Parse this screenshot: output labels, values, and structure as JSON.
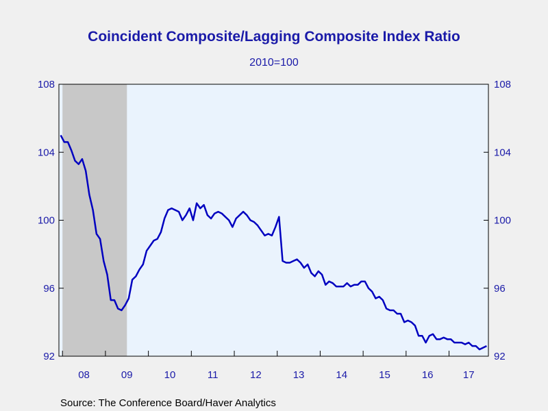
{
  "chart_data": {
    "type": "line",
    "title": "Coincident Composite/Lagging Composite Index Ratio",
    "subtitle": "2010=100",
    "source": "Source:  The Conference Board/Haver Analytics",
    "x_start": "2007-12",
    "x_tick_labels": [
      "08",
      "09",
      "10",
      "11",
      "12",
      "13",
      "14",
      "15",
      "16",
      "17"
    ],
    "ylim": [
      92,
      108
    ],
    "y_ticks": [
      92,
      96,
      100,
      104,
      108
    ],
    "y_tick_labels": [
      "92",
      "96",
      "100",
      "104",
      "108"
    ],
    "grid": false,
    "recession_shading": {
      "start": "2008-01",
      "end": "2009-06",
      "color": "#c8c8c8"
    },
    "colors": {
      "line": "#0000c0",
      "plot_bg": "#eaf3fd",
      "axis": "#000000",
      "text": "#1a1aa8"
    },
    "series": [
      {
        "values": [
          105.0,
          104.6,
          104.6,
          104.1,
          103.5,
          103.3,
          103.6,
          102.9,
          101.5,
          100.6,
          99.2,
          98.9,
          97.6,
          96.8,
          95.3,
          95.3,
          94.8,
          94.7,
          95.0,
          95.4,
          96.5,
          96.7,
          97.1,
          97.4,
          98.2,
          98.5,
          98.8,
          98.9,
          99.3,
          100.1,
          100.6,
          100.7,
          100.6,
          100.5,
          100.0,
          100.3,
          100.7,
          100.0,
          101.0,
          100.7,
          100.9,
          100.3,
          100.1,
          100.4,
          100.5,
          100.4,
          100.2,
          100.0,
          99.6,
          100.1,
          100.3,
          100.5,
          100.3,
          100.0,
          99.9,
          99.7,
          99.4,
          99.1,
          99.2,
          99.1,
          99.6,
          100.2,
          97.6,
          97.5,
          97.5,
          97.6,
          97.7,
          97.5,
          97.2,
          97.4,
          96.9,
          96.7,
          97.0,
          96.8,
          96.2,
          96.4,
          96.3,
          96.1,
          96.1,
          96.1,
          96.3,
          96.1,
          96.2,
          96.2,
          96.4,
          96.4,
          96.0,
          95.8,
          95.4,
          95.5,
          95.3,
          94.8,
          94.7,
          94.7,
          94.5,
          94.5,
          94.0,
          94.1,
          94.0,
          93.8,
          93.2,
          93.2,
          92.8,
          93.2,
          93.3,
          93.0,
          93.0,
          93.1,
          93.0,
          93.0,
          92.8,
          92.8,
          92.8,
          92.7,
          92.8,
          92.6,
          92.6,
          92.4,
          92.5,
          92.6
        ]
      }
    ]
  }
}
